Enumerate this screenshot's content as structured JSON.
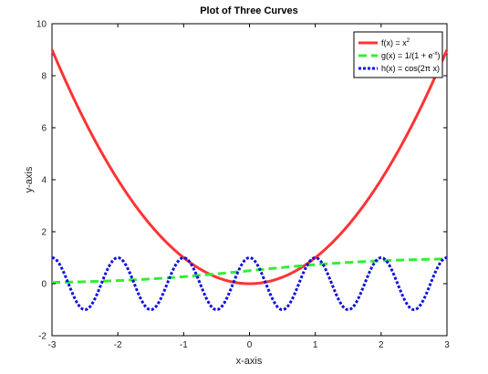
{
  "chart_data": {
    "type": "line",
    "title": "Plot of Three Curves",
    "xlabel": "x-axis",
    "ylabel": "y-axis",
    "xlim": [
      -3,
      3
    ],
    "ylim": [
      -2,
      10
    ],
    "xticks": [
      -3,
      -2,
      -1,
      0,
      1,
      2,
      3
    ],
    "yticks": [
      -2,
      0,
      2,
      4,
      6,
      8,
      10
    ],
    "grid": false,
    "legend_position": "top-right",
    "series": [
      {
        "name": "f(x) = x²",
        "legend_main": "f(x) = x",
        "legend_sup": "2",
        "function": "x^2",
        "color": "#ff3333",
        "style": "solid",
        "x": [
          -3,
          -2.5,
          -2,
          -1.5,
          -1,
          -0.5,
          0,
          0.5,
          1,
          1.5,
          2,
          2.5,
          3
        ],
        "values": [
          9,
          6.25,
          4,
          2.25,
          1,
          0.25,
          0,
          0.25,
          1,
          2.25,
          4,
          6.25,
          9
        ]
      },
      {
        "name": "g(x) = 1/(1 + e⁻ˣ)",
        "legend_main": "g(x) = 1/(1 + e",
        "legend_sup": "-x",
        "legend_tail": ")",
        "function": "1/(1+exp(-x))",
        "color": "#33ee33",
        "style": "dashed",
        "x": [
          -3,
          -2,
          -1,
          0,
          1,
          2,
          3
        ],
        "values": [
          0.047,
          0.119,
          0.269,
          0.5,
          0.731,
          0.881,
          0.953
        ]
      },
      {
        "name": "h(x) = cos(2π x)",
        "legend_main": "h(x) = cos(2π x)",
        "legend_sup": "",
        "function": "cos(2*pi*x)",
        "color": "#1111dd",
        "style": "dotted",
        "x": [
          -3,
          -2.5,
          -2,
          -1.5,
          -1,
          -0.5,
          0,
          0.5,
          1,
          1.5,
          2,
          2.5,
          3
        ],
        "values": [
          1,
          -1,
          1,
          -1,
          1,
          -1,
          1,
          -1,
          1,
          -1,
          1,
          -1,
          1
        ]
      }
    ]
  }
}
